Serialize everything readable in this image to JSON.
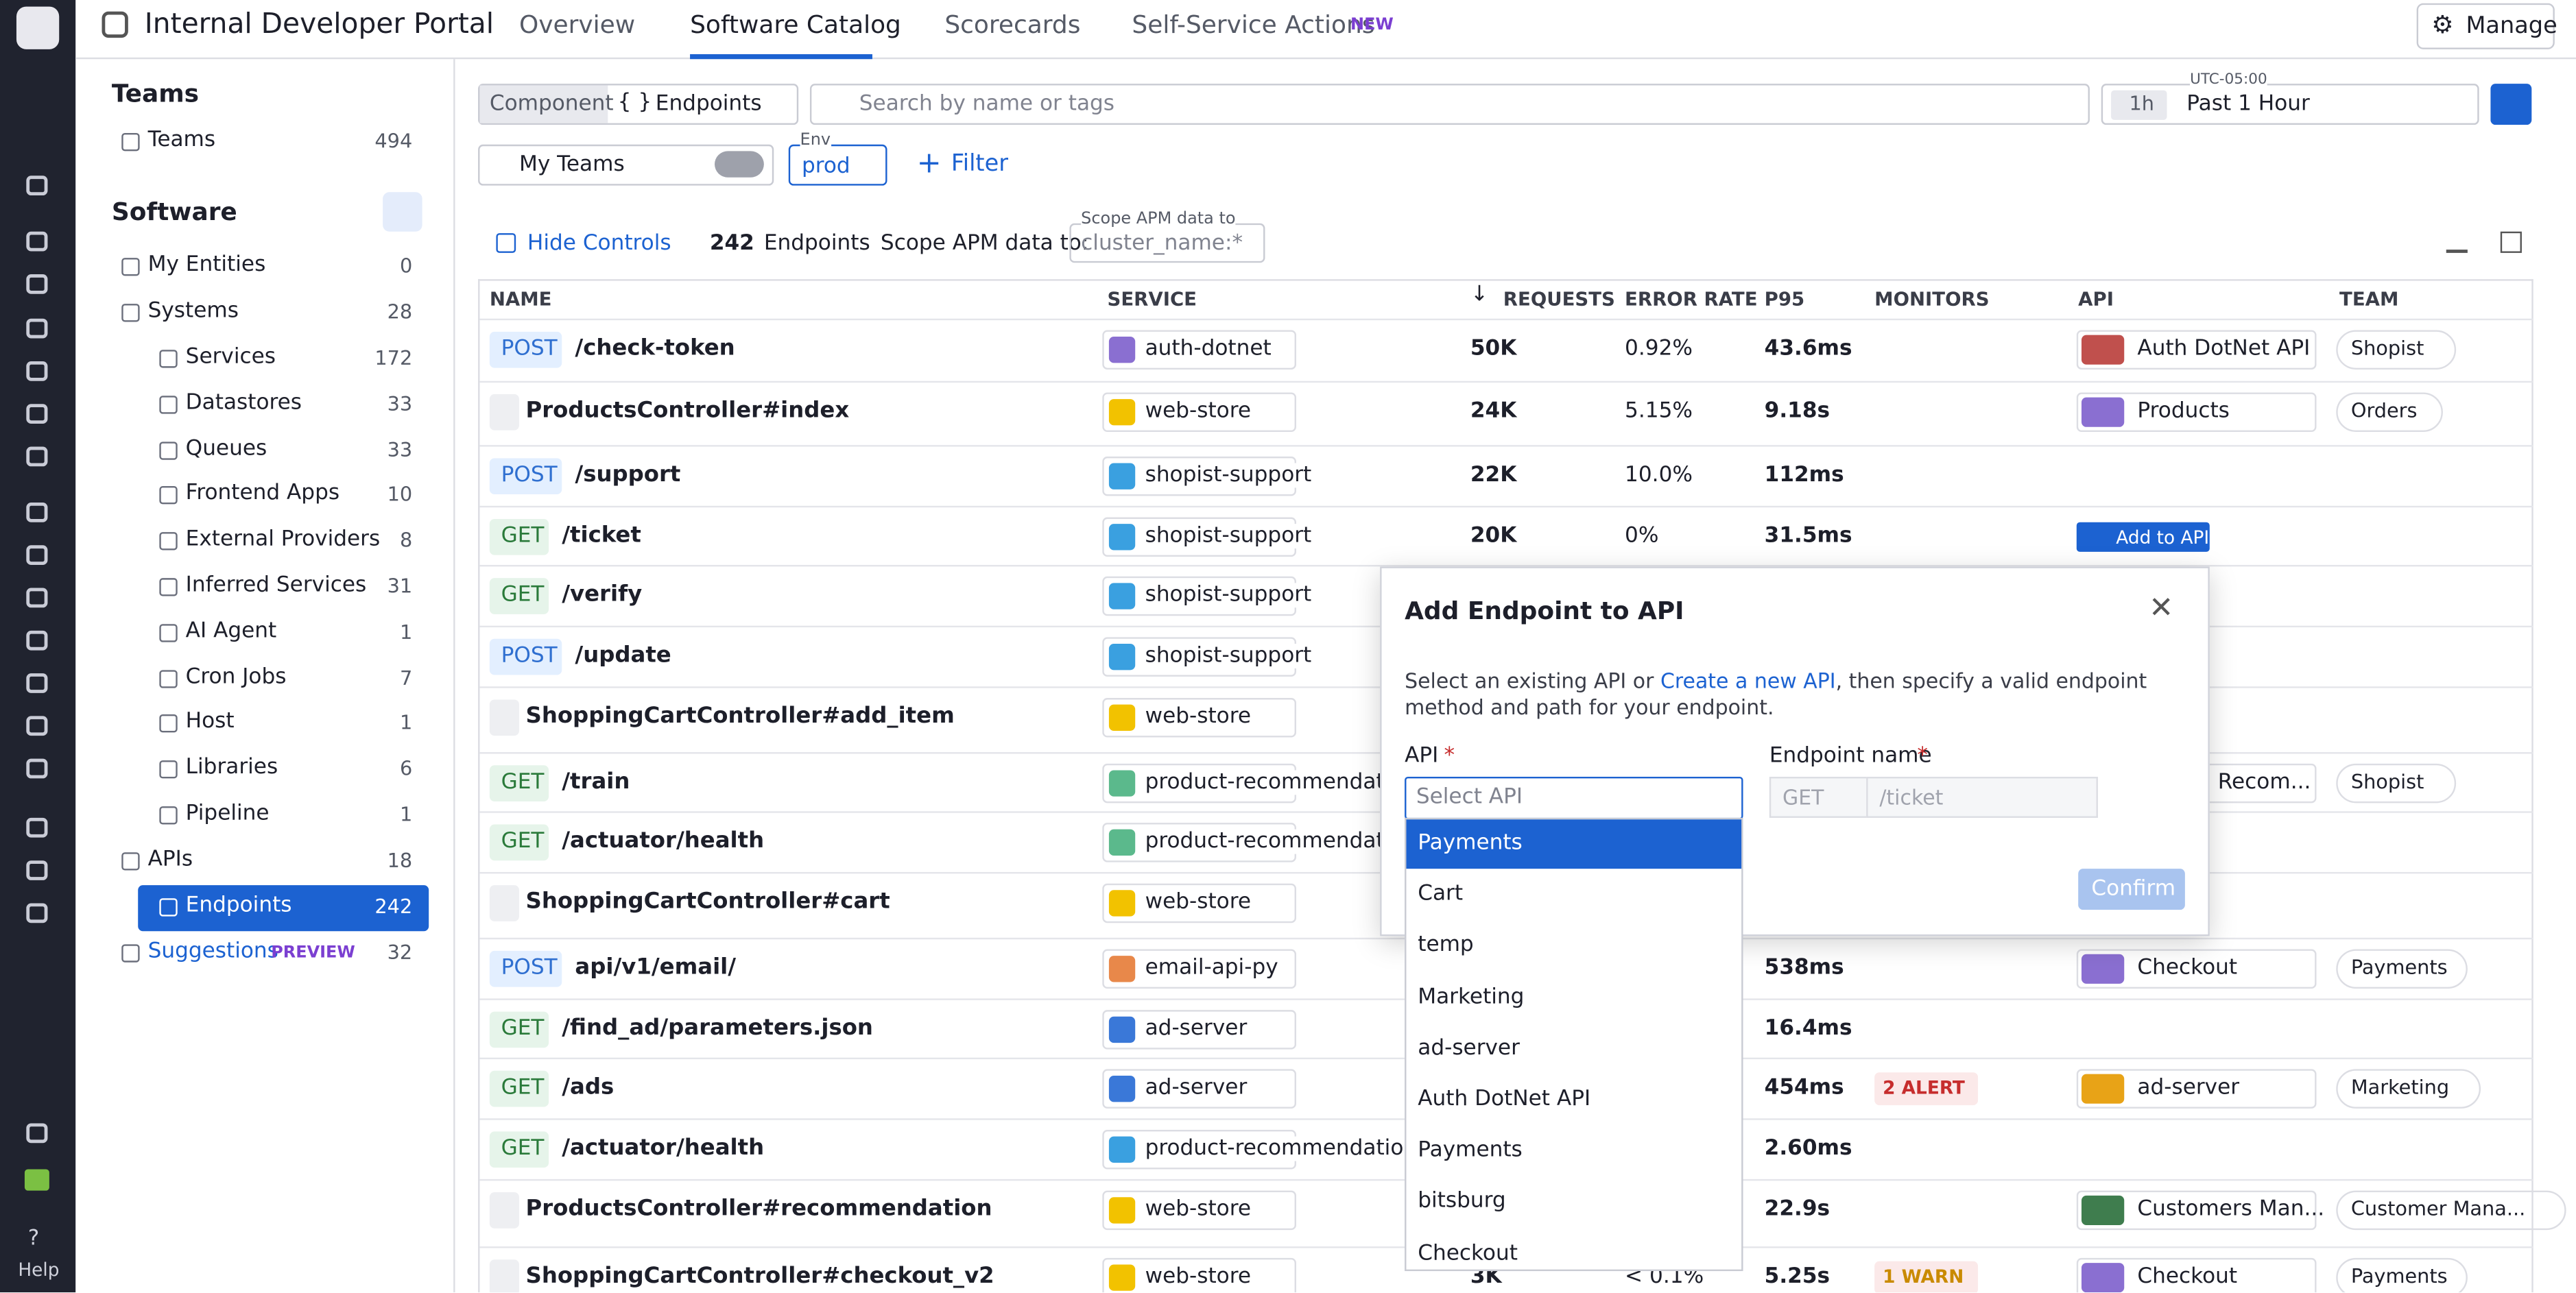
{
  "header": {
    "title": "Internal Developer Portal",
    "tabs": [
      "Overview",
      "Software Catalog",
      "Scorecards",
      "Self-Service Actions"
    ],
    "new_badge": "NEW",
    "manage": "Manage"
  },
  "rail": {
    "help": "Help"
  },
  "nav": {
    "teams_heading": "Teams",
    "teams": [
      {
        "label": "Teams",
        "count": 494
      }
    ],
    "software_heading": "Software",
    "items": [
      {
        "label": "My Entities",
        "count": 0
      },
      {
        "label": "Systems",
        "count": 28,
        "children": [
          {
            "label": "Services",
            "count": 172
          },
          {
            "label": "Datastores",
            "count": 33
          },
          {
            "label": "Queues",
            "count": 33
          },
          {
            "label": "Frontend Apps",
            "count": 10
          },
          {
            "label": "External Providers",
            "count": 8
          },
          {
            "label": "Inferred Services",
            "count": 31
          },
          {
            "label": "AI Agent",
            "count": 1
          },
          {
            "label": "Cron Jobs",
            "count": 7
          },
          {
            "label": "Host",
            "count": 1
          },
          {
            "label": "Libraries",
            "count": 6
          },
          {
            "label": "Pipeline",
            "count": 1
          }
        ]
      },
      {
        "label": "APIs",
        "count": 18,
        "children": [
          {
            "label": "Endpoints",
            "count": 242
          }
        ]
      },
      {
        "label": "Suggestions",
        "count": 32,
        "badge": "PREVIEW"
      }
    ]
  },
  "toolbar": {
    "kind": "Component",
    "selector": "Endpoints",
    "search_placeholder": "Search by name or tags",
    "timezone": "UTC-05:00",
    "time_short": "1h",
    "time_range": "Past 1 Hour",
    "my_teams": "My Teams",
    "env_label": "Env",
    "env_value": "prod",
    "filter": "Filter"
  },
  "controls": {
    "hide": "Hide Controls",
    "count": "242",
    "count_label": "Endpoints",
    "scope_label": "Scope APM data to:",
    "scope_float": "Scope APM data to",
    "scope_value": "cluster_name:*"
  },
  "table": {
    "columns": [
      "NAME",
      "SERVICE",
      "REQUESTS",
      "ERROR RATE",
      "P95",
      "MONITORS",
      "API",
      "TEAM"
    ],
    "rows": [
      {
        "method": "POST",
        "name": "/check-token",
        "service": "auth-dotnet",
        "service_color": "#8a6fd1",
        "requests": "50K",
        "error": "0.92%",
        "p95": "43.6ms",
        "api": "Auth DotNet API",
        "api_color": "#c0504d",
        "team": "Shopist"
      },
      {
        "name": "ProductsController#index",
        "service": "web-store",
        "service_color": "#f2c200",
        "requests": "24K",
        "error": "5.15%",
        "p95": "9.18s",
        "api": "Products",
        "api_color": "#8a6fd1",
        "team": "Orders"
      },
      {
        "method": "POST",
        "name": "/support",
        "service": "shopist-support",
        "service_color": "#3aa0e0",
        "requests": "22K",
        "error": "10.0%",
        "p95": "112ms"
      },
      {
        "method": "GET",
        "name": "/ticket",
        "service": "shopist-support",
        "service_color": "#3aa0e0",
        "requests": "20K",
        "error": "0%",
        "p95": "31.5ms",
        "action": "Add to API"
      },
      {
        "method": "GET",
        "name": "/verify",
        "service": "shopist-support",
        "service_color": "#3aa0e0"
      },
      {
        "method": "POST",
        "name": "/update",
        "service": "shopist-support",
        "service_color": "#3aa0e0"
      },
      {
        "name": "ShoppingCartController#add_item",
        "service": "web-store",
        "service_color": "#f2c200"
      },
      {
        "method": "GET",
        "name": "/train",
        "service": "product-recommendation",
        "service_color": "#5bb98c",
        "api": "Recom...",
        "team": "Shopist"
      },
      {
        "method": "GET",
        "name": "/actuator/health",
        "service": "product-recommendation",
        "service_color": "#5bb98c"
      },
      {
        "name": "ShoppingCartController#cart",
        "service": "web-store",
        "service_color": "#f2c200"
      },
      {
        "method": "POST",
        "name": "api/v1/email/",
        "service": "email-api-py",
        "service_color": "#e8884a",
        "p95": "538ms",
        "api": "Checkout",
        "api_color": "#8a6fd1",
        "team": "Payments"
      },
      {
        "method": "GET",
        "name": "/find_ad/parameters.json",
        "service": "ad-server",
        "service_color": "#3a78d8",
        "p95": "16.4ms"
      },
      {
        "method": "GET",
        "name": "/ads",
        "service": "ad-server",
        "service_color": "#3a78d8",
        "p95": "454ms",
        "monitor": "2 ALERT",
        "monitor_color": "#c62d2d",
        "api": "ad-server",
        "api_color": "#e8a317",
        "team": "Marketing"
      },
      {
        "method": "GET",
        "name": "/actuator/health",
        "service": "product-recommendation-lit",
        "service_color": "#3aa0e0",
        "p95": "2.60ms"
      },
      {
        "name": "ProductsController#recommendation",
        "service": "web-store",
        "service_color": "#f2c200",
        "p95": "22.9s",
        "api": "Customers Man...",
        "api_color": "#3f7d4e",
        "team": "Customer Mana..."
      },
      {
        "name": "ShoppingCartController#checkout_v2",
        "service": "web-store",
        "service_color": "#f2c200",
        "requests": "3K",
        "error": "< 0.1%",
        "p95": "5.25s",
        "monitor": "1 WARN",
        "monitor_color": "#c98a00",
        "api": "Checkout",
        "api_color": "#8a6fd1",
        "team": "Payments"
      }
    ]
  },
  "modal": {
    "title": "Add Endpoint to API",
    "text_before": "Select an existing API or ",
    "link": "Create a new API",
    "text_after": ", then specify a valid endpoint method and path for your endpoint.",
    "api_label": "API",
    "required": "*",
    "endpoint_label": "Endpoint name",
    "api_placeholder": "Select API",
    "method": "GET",
    "path_placeholder": "/ticket",
    "confirm": "Confirm",
    "options": [
      "Payments",
      "Cart",
      "temp",
      "Marketing",
      "ad-server",
      "Auth DotNet API",
      "Payments",
      "bitsburg",
      "Checkout"
    ]
  }
}
